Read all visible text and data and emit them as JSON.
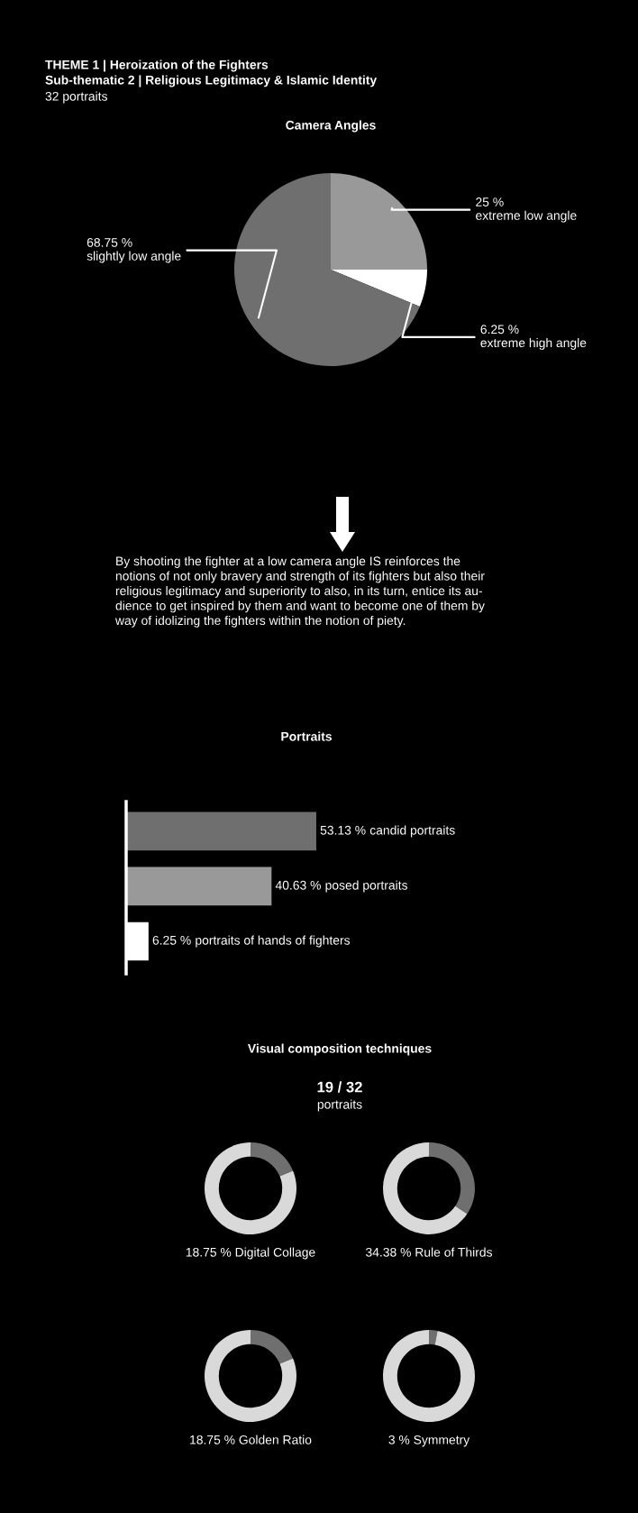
{
  "chart_data": [
    {
      "type": "other",
      "title": "THEME 1 | Heroization of the Fighters",
      "subtitle": "Sub-thematic 2 | Religious Legitimacy & Islamic Identity",
      "annotations": [
        "32 portraits"
      ]
    },
    {
      "type": "pie",
      "title": "Camera Angles",
      "categories": [
        "extreme low angle",
        "extreme high angle",
        "slightly low angle"
      ],
      "values": [
        25,
        6.25,
        68.75
      ],
      "value_labels": [
        "25 %",
        "6.25 %",
        "68.75 %"
      ],
      "colors": [
        "#999999",
        "#ffffff",
        "#6f6f6f"
      ]
    },
    {
      "type": "other",
      "annotations": [
        "By shooting the fighter at a low camera angle IS reinforces the\nnotions of not only bravery and strength of its fighters but also their\nreligious legitimacy and superiority to also, in its turn, entice its au-\ndience to get inspired by them and want to become one of them by\nway of idolizing the fighters within the notion of piety."
      ]
    },
    {
      "type": "bar",
      "orientation": "horizontal",
      "title": "Portraits",
      "categories": [
        null,
        null,
        null
      ],
      "annotations": [
        "candid portraits",
        "posed portraits",
        "portraits of hands of fighters"
      ],
      "values": [
        53.13,
        40.63,
        6.25
      ],
      "value_labels": [
        "53.13 %",
        "40.63 %",
        "6.25 %"
      ],
      "colors": [
        "#6f6f6f",
        "#999999",
        "#ffffff"
      ]
    },
    {
      "type": "other",
      "title": "Visual composition techniques",
      "subtitle": "19 / 32",
      "annotations": [
        "portraits"
      ]
    },
    {
      "type": "donut",
      "xlabel": "18.75 % Digital Collage",
      "categories": [
        null,
        null
      ],
      "values": [
        18.75,
        81.25
      ],
      "colors": [
        "#6f6f6f",
        "#d9d9d9"
      ]
    },
    {
      "type": "donut",
      "xlabel": "34.38 % Rule of Thirds",
      "categories": [
        null,
        null
      ],
      "values": [
        34.38,
        65.62
      ],
      "colors": [
        "#6f6f6f",
        "#d9d9d9"
      ]
    },
    {
      "type": "donut",
      "xlabel": "18.75 % Golden Ratio",
      "categories": [
        null,
        null
      ],
      "values": [
        18.75,
        81.25
      ],
      "colors": [
        "#6f6f6f",
        "#d9d9d9"
      ]
    },
    {
      "type": "donut",
      "xlabel": "3 % Symmetry",
      "categories": [
        null,
        null
      ],
      "values": [
        3,
        97
      ],
      "colors": [
        "#6f6f6f",
        "#d9d9d9"
      ]
    }
  ]
}
